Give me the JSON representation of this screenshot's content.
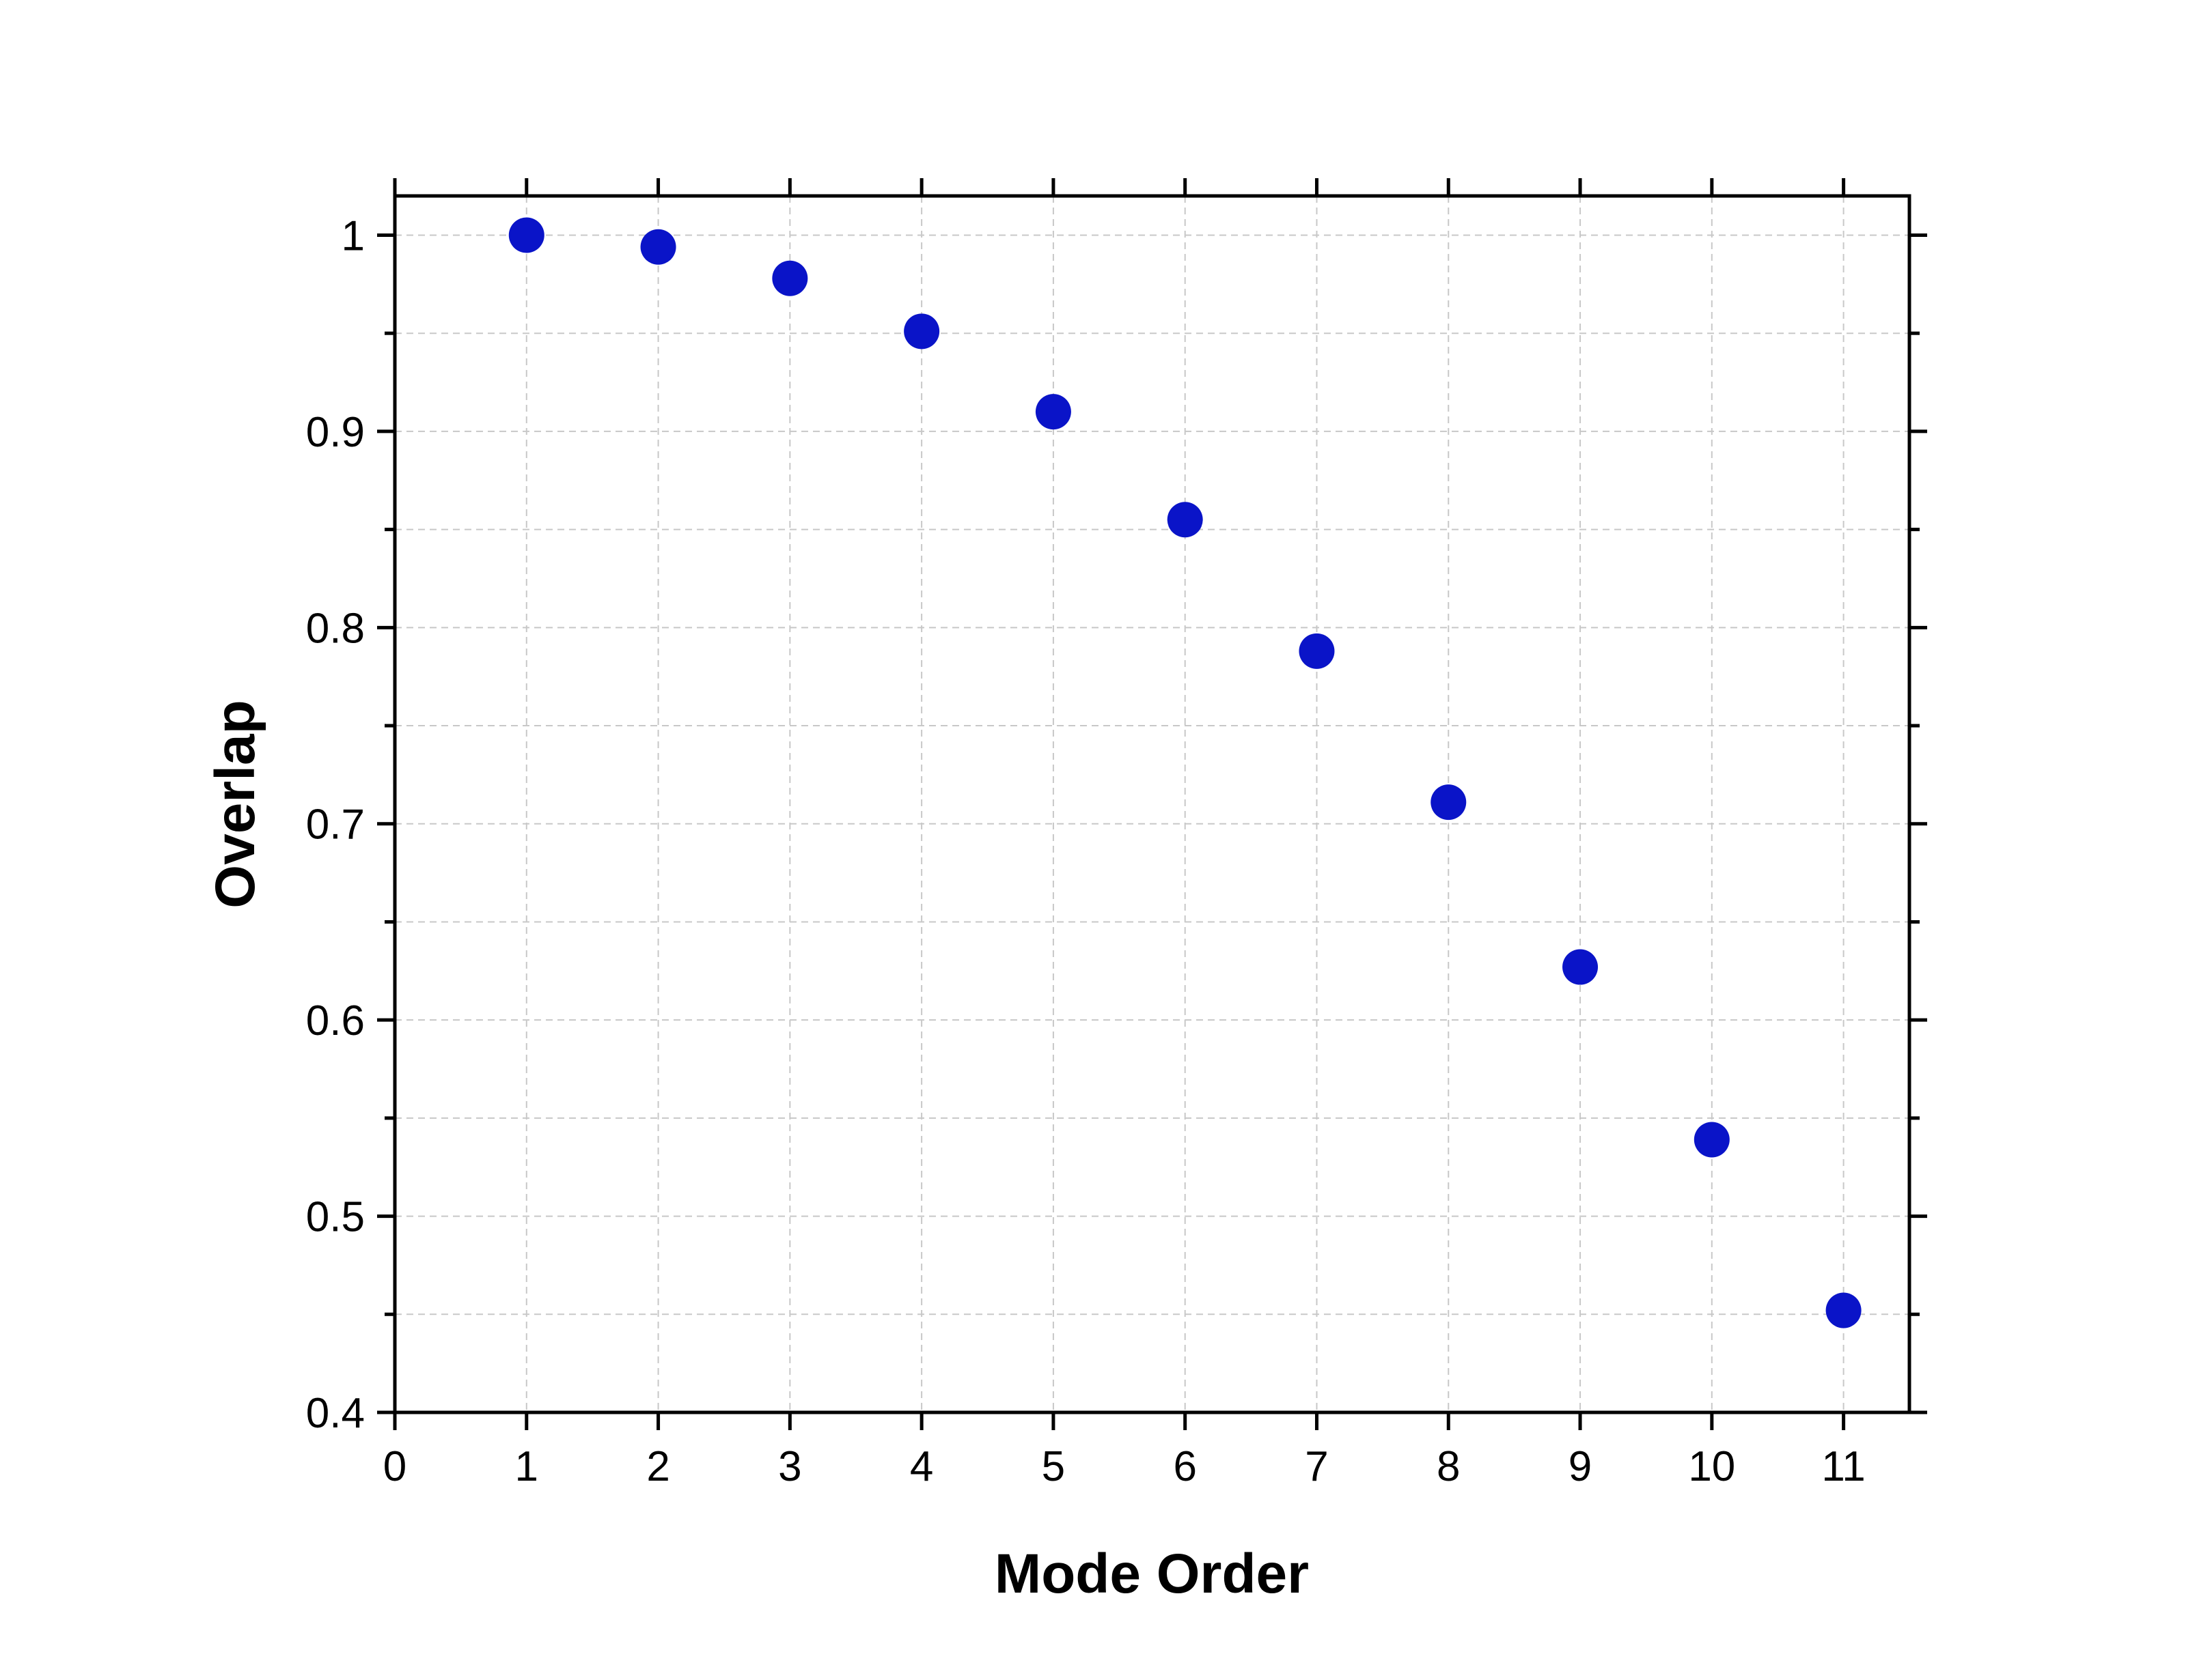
{
  "chart_data": {
    "type": "scatter",
    "title": "",
    "xlabel": "Mode Order",
    "ylabel": "Overlap",
    "xlim": [
      0,
      11.5
    ],
    "ylim": [
      0.4,
      1.02
    ],
    "x_ticks": [
      0,
      1,
      2,
      3,
      4,
      5,
      6,
      7,
      8,
      9,
      10,
      11
    ],
    "x_tick_labels": [
      "0",
      "1",
      "2",
      "3",
      "4",
      "5",
      "6",
      "7",
      "8",
      "9",
      "10",
      "11"
    ],
    "y_ticks": [
      0.4,
      0.5,
      0.6,
      0.7,
      0.8,
      0.9,
      1.0
    ],
    "y_tick_labels": [
      "0.4",
      "0.5",
      "0.6",
      "0.7",
      "0.8",
      "0.9",
      "1"
    ],
    "y_minor_ticks": [
      0.45,
      0.55,
      0.65,
      0.75,
      0.85,
      0.95
    ],
    "grid": true,
    "marker_color": "#0a14c8",
    "series": [
      {
        "x": [
          1,
          2,
          3,
          4,
          5,
          6,
          7,
          8,
          9,
          10,
          11
        ],
        "y": [
          1.0,
          0.994,
          0.978,
          0.951,
          0.91,
          0.855,
          0.788,
          0.711,
          0.627,
          0.539,
          0.452
        ]
      }
    ]
  }
}
